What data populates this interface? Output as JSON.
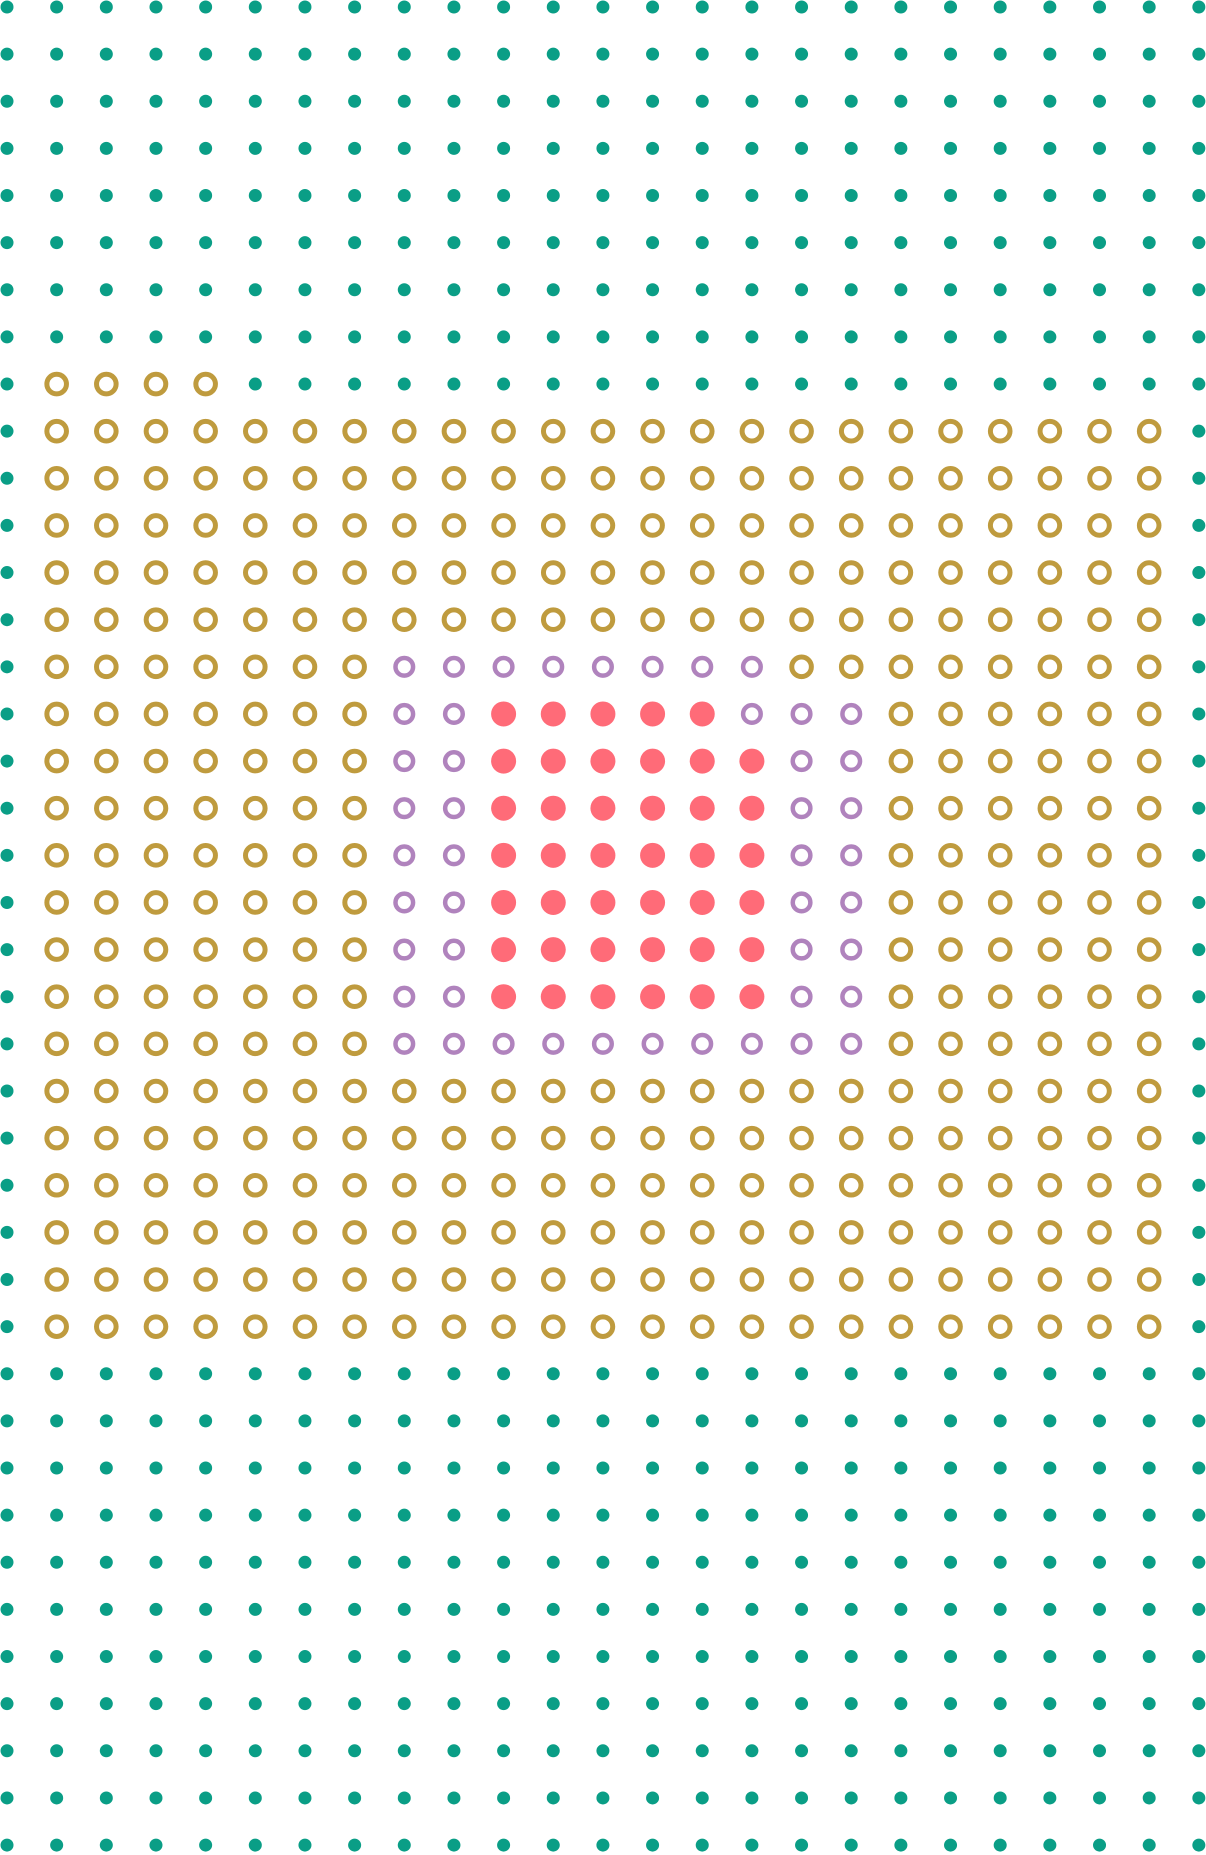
{
  "pattern": {
    "styles": {
      "t": {
        "color": "#0a9e86",
        "kind": "dot"
      },
      "g": {
        "color": "#bf9b3e",
        "kind": "ring"
      },
      "p": {
        "color": "#b083bd",
        "kind": "ring-small"
      },
      "r": {
        "color": "#ff6b78",
        "kind": "disc"
      }
    },
    "rows": [
      "ttttttttttttttttttttttttt",
      "ttttttttttttttttttttttttt",
      "ttttttttttttttttttttttttt",
      "ttttttttttttttttttttttttt",
      "ttttttttttttttttttttttttt",
      "ttttttttttttttttttttttttt",
      "ttttttttttttttttttttttttt",
      "ttttttttttttttttttttttttt",
      "tggggtttttttttttttttttttt",
      "tgggggggggggggggggggggggt",
      "tgggggggggggggggggggggggt",
      "tgggggggggggggggggggggggt",
      "tgggggggggggggggggggggggt",
      "tgggggggggggggggggggggggt",
      "tgggggggppppppppggggggggt",
      "tgggggggpprrrrrpppggggggt",
      "tgggggggpprrrrrrppggggggt",
      "tgggggggpprrrrrrppggggggt",
      "tgggggggpprrrrrrppggggggt",
      "tgggggggpprrrrrrppggggggt",
      "tgggggggpprrrrrrppggggggt",
      "tgggggggpprrrrrrppggggggt",
      "tgggggggppppppppppggggggt",
      "tgggggggggggggggggggggggt",
      "tgggggggggggggggggggggggt",
      "tgggggggggggggggggggggggt",
      "tgggggggggggggggggggggggt",
      "tgggggggggggggggggggggggt",
      "tgggggggggggggggggggggggt",
      "ttttttttttttttttttttttttt",
      "ttttttttttttttttttttttttt",
      "ttttttttttttttttttttttttt",
      "ttttttttttttttttttttttttt",
      "ttttttttttttttttttttttttt",
      "ttttttttttttttttttttttttt",
      "ttttttttttttttttttttttttt",
      "ttttttttttttttttttttttttt",
      "ttttttttttttttttttttttttt",
      "ttttttttttttttttttttttttt",
      "ttttttttttttttttttttttttt"
    ]
  }
}
